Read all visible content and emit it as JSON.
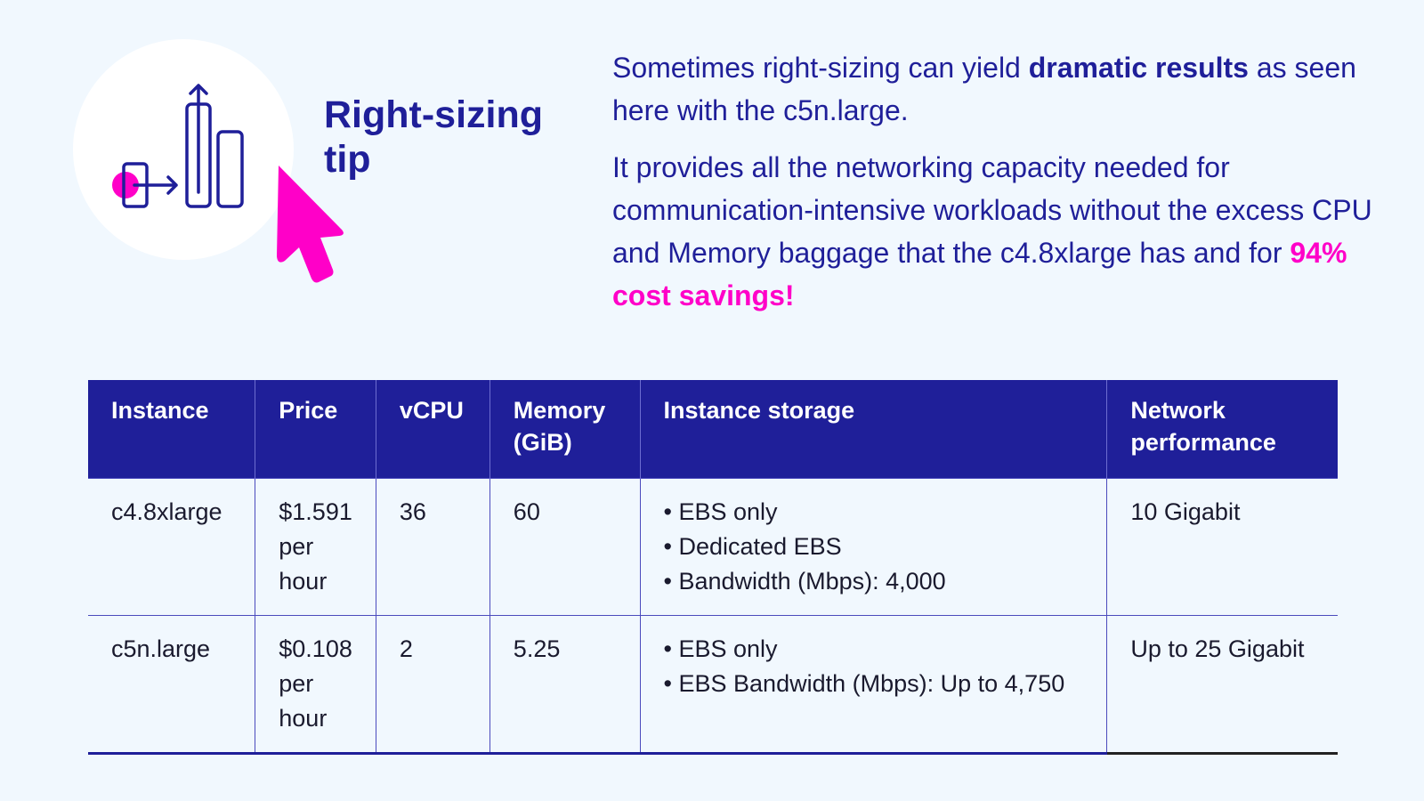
{
  "heading": {
    "title_line1": "Right-sizing",
    "title_line2": "tip"
  },
  "intro": {
    "p1_before": "Sometimes right-sizing can yield ",
    "p1_bold": "dramatic results",
    "p1_after": " as seen here with the c5n.large.",
    "p2_before": "It provides all the networking capacity needed for communication-intensive workloads without the excess CPU and Memory baggage that the c4.8xlarge has and for ",
    "p2_highlight": "94% cost savings!"
  },
  "colors": {
    "brand": "#1f1f99",
    "accent": "#ff00c8",
    "background": "#f1f8fe"
  },
  "icons": [
    "bar-chart-arrow-icon",
    "cursor-pointer-icon"
  ],
  "table": {
    "headers": [
      "Instance",
      "Price",
      "vCPU",
      "Memory (GiB)",
      "Instance storage",
      "Network performance"
    ],
    "rows": [
      {
        "instance": "c4.8xlarge",
        "price": "$1.591 per hour",
        "vcpu": "36",
        "memory": "60",
        "storage": [
          "EBS only",
          "Dedicated  EBS",
          "Bandwidth  (Mbps):  4,000"
        ],
        "network": "10 Gigabit"
      },
      {
        "instance": "c5n.large",
        "price": "$0.108 per hour",
        "vcpu": "2",
        "memory": "5.25",
        "storage": [
          "EBS only",
          "EBS Bandwidth (Mbps):  Up to 4,750"
        ],
        "network": "Up to 25 Gigabit"
      }
    ]
  }
}
